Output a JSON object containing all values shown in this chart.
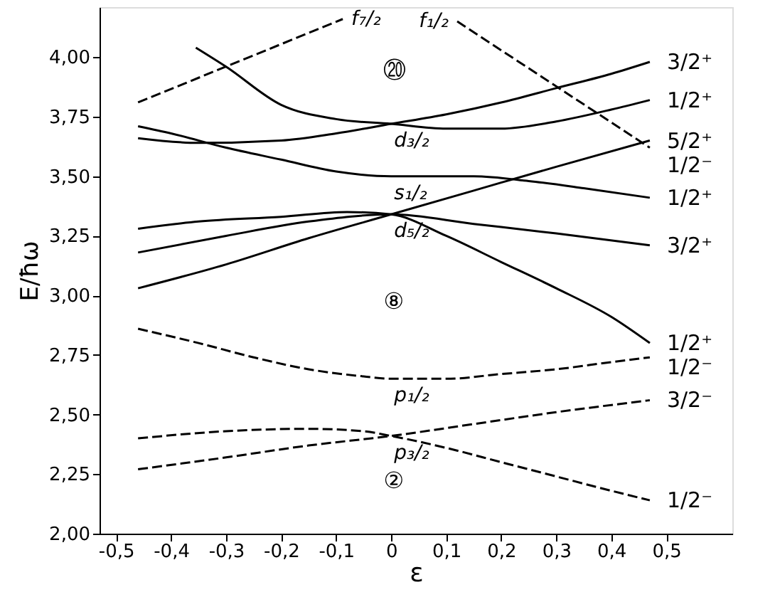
{
  "chart_data": {
    "type": "line",
    "xlabel": "ε",
    "ylabel": "E/ħω",
    "xlim": [
      -0.53,
      0.62
    ],
    "ylim": [
      2.0,
      4.21
    ],
    "xticks": [
      {
        "value": -0.5,
        "label": "-0,5"
      },
      {
        "value": -0.4,
        "label": "-0,4"
      },
      {
        "value": -0.3,
        "label": "-0,3"
      },
      {
        "value": -0.2,
        "label": "-0,2"
      },
      {
        "value": -0.1,
        "label": "-0,1"
      },
      0,
      {
        "value": 0.1,
        "label": "0,1"
      },
      {
        "value": 0.2,
        "label": "0,2"
      },
      {
        "value": 0.3,
        "label": "0,3"
      },
      {
        "value": 0.4,
        "label": "0,4"
      },
      {
        "value": 0.5,
        "label": "0,5"
      }
    ],
    "yticks": [
      {
        "value": 2.0,
        "label": "2,00"
      },
      {
        "value": 2.25,
        "label": "2,25"
      },
      {
        "value": 2.5,
        "label": "2,50"
      },
      {
        "value": 2.75,
        "label": "2,75"
      },
      {
        "value": 3.0,
        "label": "3,00"
      },
      {
        "value": 3.25,
        "label": "3,25"
      },
      {
        "value": 3.5,
        "label": "3,50"
      },
      {
        "value": 3.75,
        "label": "3,75"
      },
      {
        "value": 4.0,
        "label": "4,00"
      }
    ],
    "grid": false,
    "marker": "none",
    "series": [
      {
        "name": "3/2⁺",
        "color": "#000000",
        "line_style": "solid",
        "x": [
          -0.46,
          -0.35,
          -0.2,
          -0.1,
          0,
          0.1,
          0.2,
          0.3,
          0.4,
          0.47
        ],
        "values": [
          3.66,
          3.64,
          3.65,
          3.68,
          3.72,
          3.76,
          3.81,
          3.87,
          3.93,
          3.98
        ]
      },
      {
        "name": "1/2⁺",
        "color": "#000000",
        "line_style": "solid",
        "x": [
          -0.355,
          -0.3,
          -0.2,
          -0.1,
          0,
          0.1,
          0.2,
          0.3,
          0.4,
          0.47
        ],
        "values": [
          4.04,
          3.96,
          3.8,
          3.74,
          3.72,
          3.7,
          3.7,
          3.73,
          3.78,
          3.82
        ]
      },
      {
        "name": "5/2⁺",
        "color": "#000000",
        "line_style": "solid",
        "x": [
          -0.46,
          -0.3,
          -0.15,
          0,
          0.15,
          0.3,
          0.47
        ],
        "values": [
          3.03,
          3.13,
          3.24,
          3.34,
          3.44,
          3.54,
          3.65
        ]
      },
      {
        "name": "1/2⁻",
        "color": "#000000",
        "line_style": "dashed",
        "x": [
          0.12,
          0.47
        ],
        "values": [
          4.15,
          3.62
        ]
      },
      {
        "name": "1/2⁺",
        "color": "#000000",
        "line_style": "solid",
        "x": [
          -0.46,
          -0.4,
          -0.3,
          -0.2,
          -0.1,
          0,
          0.1,
          0.15,
          0.25,
          0.35,
          0.47
        ],
        "values": [
          3.71,
          3.68,
          3.62,
          3.57,
          3.52,
          3.5,
          3.5,
          3.5,
          3.48,
          3.45,
          3.41
        ]
      },
      {
        "name": "3/2⁺",
        "color": "#000000",
        "line_style": "solid",
        "x": [
          -0.46,
          -0.3,
          -0.15,
          0,
          0.15,
          0.3,
          0.47
        ],
        "values": [
          3.18,
          3.25,
          3.31,
          3.34,
          3.3,
          3.26,
          3.21
        ]
      },
      {
        "name": "1/2⁺",
        "color": "#000000",
        "line_style": "solid",
        "x": [
          -0.46,
          -0.35,
          -0.2,
          -0.08,
          0,
          0.1,
          0.2,
          0.3,
          0.4,
          0.47
        ],
        "values": [
          3.28,
          3.31,
          3.33,
          3.35,
          3.34,
          3.25,
          3.14,
          3.03,
          2.91,
          2.8
        ]
      },
      {
        "name": "1/2⁻",
        "color": "#000000",
        "line_style": "dashed",
        "x": [
          -0.46,
          -0.35,
          -0.25,
          -0.15,
          -0.05,
          0,
          0.1,
          0.2,
          0.3,
          0.4,
          0.47
        ],
        "values": [
          2.86,
          2.8,
          2.74,
          2.69,
          2.66,
          2.65,
          2.65,
          2.67,
          2.69,
          2.72,
          2.74
        ]
      },
      {
        "name": "3/2⁻",
        "color": "#000000",
        "line_style": "dashed",
        "x": [
          -0.46,
          -0.3,
          -0.15,
          0,
          0.15,
          0.3,
          0.47
        ],
        "values": [
          2.27,
          2.32,
          2.37,
          2.41,
          2.46,
          2.51,
          2.56
        ]
      },
      {
        "name": "1/2⁻",
        "color": "#000000",
        "line_style": "dashed",
        "x": [
          -0.46,
          -0.3,
          -0.15,
          -0.05,
          0,
          0.1,
          0.2,
          0.3,
          0.4,
          0.47
        ],
        "values": [
          2.4,
          2.43,
          2.44,
          2.43,
          2.41,
          2.36,
          2.3,
          2.24,
          2.18,
          2.14
        ]
      },
      {
        "color": "#000000",
        "line_style": "dashed",
        "x": [
          -0.46,
          -0.088
        ],
        "values": [
          3.81,
          4.16
        ]
      }
    ],
    "annotations": [
      {
        "text": "f₇/₂",
        "x": -0.088,
        "y": 4.16
      },
      {
        "text": "f₁/₂",
        "x": 0.12,
        "y": 4.15
      },
      "⑳",
      {
        "text": "d₃/₂",
        "x": 0,
        "y": 3.72
      },
      {
        "text": "s₁/₂",
        "x": 0,
        "y": 3.5
      },
      {
        "text": "d₅/₂",
        "x": 0,
        "y": 3.34
      },
      "⑧",
      {
        "text": "p₁/₂",
        "x": 0,
        "y": 2.65
      },
      {
        "text": "p₃/₂",
        "x": 0,
        "y": 2.41
      },
      "②"
    ]
  }
}
